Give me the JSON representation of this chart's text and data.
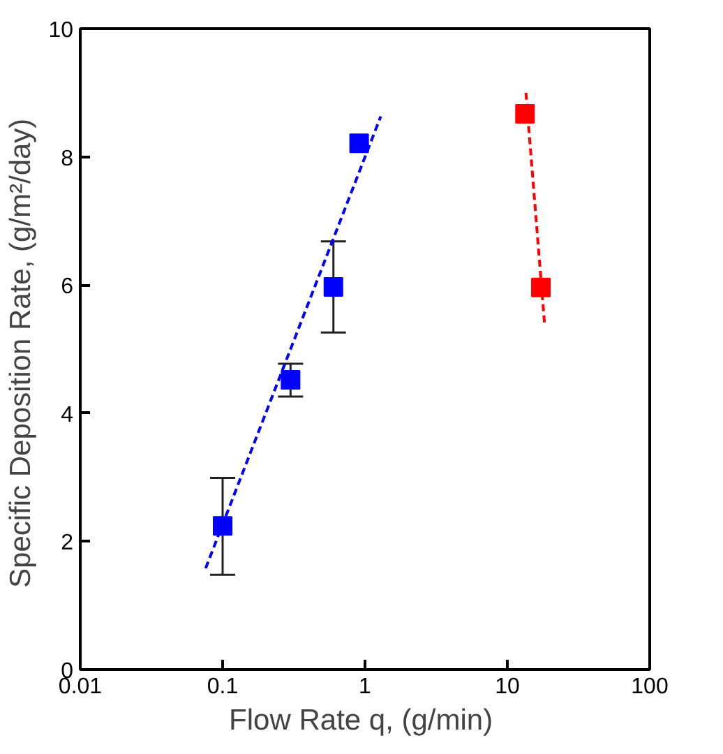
{
  "chart_data": {
    "type": "scatter",
    "xlabel": "Flow Rate q,  (g/min)",
    "ylabel": "Specific Deposition Rate,  (g/m²/day)",
    "log": "x",
    "xlim": [
      0.01,
      100
    ],
    "xticks": [
      0.01,
      0.1,
      1,
      10,
      100
    ],
    "ylim": [
      0,
      10
    ],
    "yticks": [
      0,
      2,
      4,
      6,
      8,
      10
    ],
    "grid": false,
    "marker": "square",
    "series": [
      {
        "color": "#0000ff",
        "x": [
          0.1,
          0.3,
          0.6,
          0.91
        ],
        "values": [
          2.24,
          4.52,
          5.97,
          8.21
        ],
        "errors": [
          [
            1.48,
            2.99
          ],
          [
            4.26,
            4.77
          ],
          [
            5.26,
            6.68
          ],
          null
        ]
      },
      {
        "color": "#ff0000",
        "x": [
          13.3,
          17.2
        ],
        "values": [
          8.67,
          5.96
        ]
      },
      {
        "type": "line",
        "color": "#0000ff",
        "line_style": "dashed",
        "marker": "none",
        "x": [
          0.076,
          1.29
        ],
        "values": [
          1.58,
          8.63
        ]
      },
      {
        "type": "line",
        "color": "#ff0000",
        "line_style": "dashed",
        "marker": "none",
        "x": [
          13.5,
          18.3
        ],
        "values": [
          9.0,
          5.36
        ]
      }
    ]
  }
}
